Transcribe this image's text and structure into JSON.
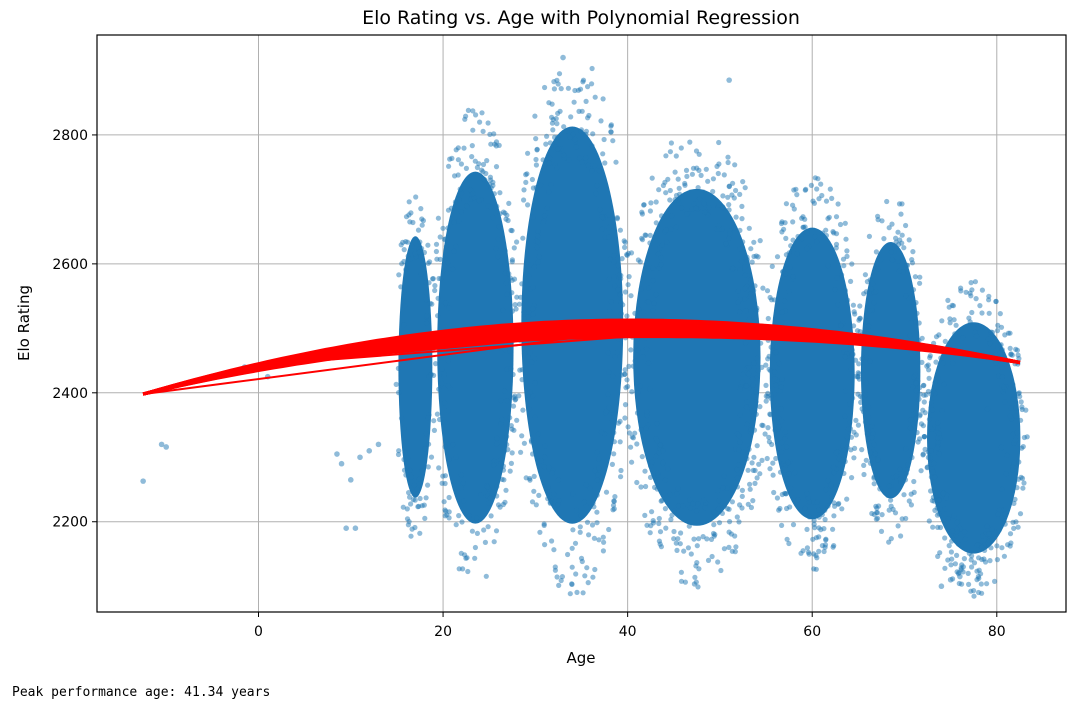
{
  "chart_data": {
    "type": "scatter",
    "title": "Elo Rating vs. Age with Polynomial Regression",
    "xlabel": "Age",
    "ylabel": "Elo Rating",
    "xlim": [
      -17.5,
      87.5
    ],
    "ylim": [
      2060,
      2955
    ],
    "xticks": [
      0,
      20,
      40,
      60,
      80
    ],
    "yticks": [
      2200,
      2400,
      2600,
      2800
    ],
    "grid": true,
    "series": [
      {
        "kind": "scatter",
        "color": "#1f77b4",
        "alpha": 0.5,
        "cloud": [
          {
            "x": [
              15,
              19
            ],
            "y": [
              2180,
              2700
            ]
          },
          {
            "x": [
              19,
              28
            ],
            "y": [
              2120,
              2820
            ]
          },
          {
            "x": [
              28,
              40
            ],
            "y": [
              2110,
              2900
            ]
          },
          {
            "x": [
              40,
              55
            ],
            "y": [
              2120,
              2790
            ]
          },
          {
            "x": [
              55,
              65
            ],
            "y": [
              2140,
              2720
            ]
          },
          {
            "x": [
              65,
              72
            ],
            "y": [
              2180,
              2690
            ]
          },
          {
            "x": [
              72,
              83
            ],
            "y": [
              2100,
              2560
            ]
          }
        ],
        "outliers": [
          {
            "x": -12.5,
            "y": 2263
          },
          {
            "x": -10.5,
            "y": 2320
          },
          {
            "x": -10,
            "y": 2316
          },
          {
            "x": -1.5,
            "y": 2440
          },
          {
            "x": 1,
            "y": 2425
          },
          {
            "x": 8.5,
            "y": 2305
          },
          {
            "x": 9,
            "y": 2290
          },
          {
            "x": 9.5,
            "y": 2190
          },
          {
            "x": 10,
            "y": 2265
          },
          {
            "x": 10.5,
            "y": 2190
          },
          {
            "x": 11,
            "y": 2300
          },
          {
            "x": 12,
            "y": 2310
          },
          {
            "x": 13,
            "y": 2320
          },
          {
            "x": 74,
            "y": 2100
          },
          {
            "x": 75,
            "y": 2110
          },
          {
            "x": 76,
            "y": 2115
          },
          {
            "x": 79,
            "y": 2375
          },
          {
            "x": 80.5,
            "y": 2315
          },
          {
            "x": 51,
            "y": 2885
          },
          {
            "x": 33,
            "y": 2920
          }
        ]
      },
      {
        "kind": "polynomial-regression",
        "color": "#ff0000",
        "x_range": [
          -12.5,
          82.5
        ],
        "peak": {
          "x": 41.34,
          "y": 2500
        },
        "start_y": 2398,
        "end_y": 2447,
        "band": 13
      }
    ]
  },
  "output_text": "Peak performance age: 41.34 years"
}
